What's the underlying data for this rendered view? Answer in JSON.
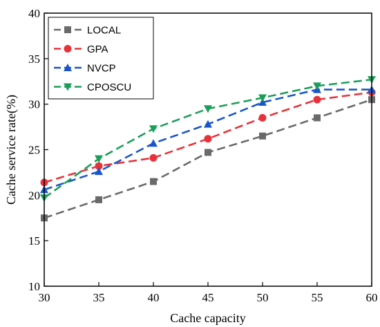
{
  "chart_data": {
    "type": "line",
    "title": "",
    "xlabel": "Cache capacity",
    "ylabel": "Cache service rate(%)",
    "xlim": [
      30,
      60
    ],
    "ylim": [
      10,
      40
    ],
    "x": [
      30,
      35,
      40,
      45,
      50,
      55,
      60
    ],
    "x_ticks": [
      "30",
      "35",
      "40",
      "45",
      "50",
      "55",
      "60"
    ],
    "y_ticks": [
      "10",
      "15",
      "20",
      "25",
      "30",
      "35",
      "40"
    ],
    "grid": false,
    "legend_position": "top-left",
    "series": [
      {
        "name": "LOCAL",
        "color": "#6a6a6a",
        "marker": "square",
        "values": [
          17.5,
          19.5,
          21.5,
          24.7,
          26.5,
          28.5,
          30.5
        ]
      },
      {
        "name": "GPA",
        "color": "#e8323a",
        "marker": "circle",
        "values": [
          21.4,
          23.2,
          24.1,
          26.2,
          28.5,
          30.5,
          31.3
        ]
      },
      {
        "name": "NVCP",
        "color": "#1a56c8",
        "marker": "triangle-up",
        "values": [
          20.6,
          22.6,
          25.7,
          27.8,
          30.2,
          31.6,
          31.6
        ]
      },
      {
        "name": "CPOSCU",
        "color": "#1c9e5a",
        "marker": "triangle-down",
        "values": [
          19.7,
          24.0,
          27.3,
          29.5,
          30.7,
          32.0,
          32.7
        ]
      }
    ]
  }
}
